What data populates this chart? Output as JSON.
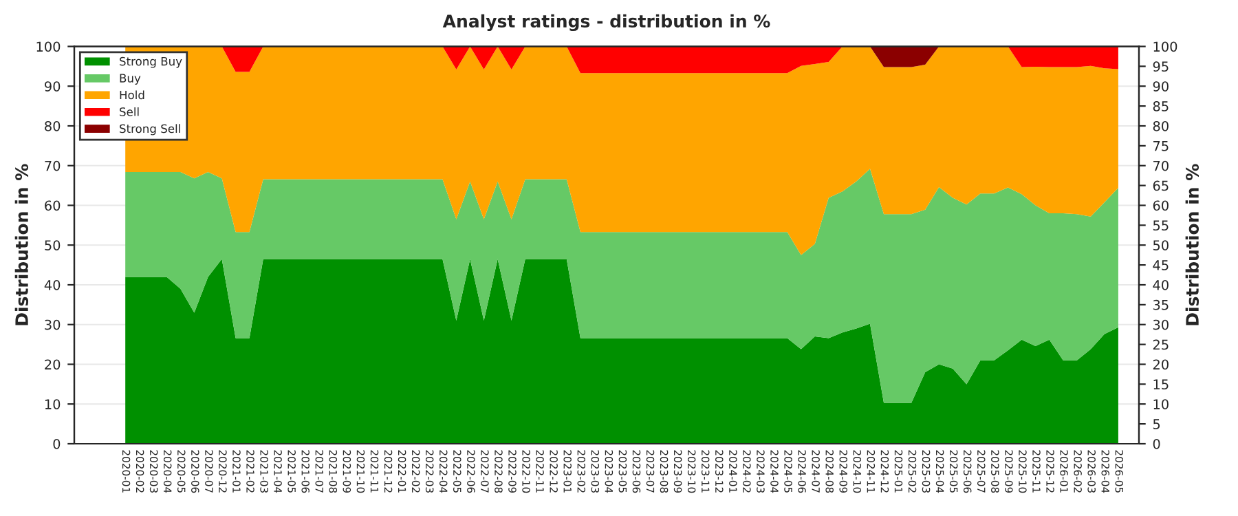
{
  "chart_data": {
    "type": "area",
    "stacked": true,
    "title": "Analyst ratings - distribution in %",
    "ylabel": "Distribution in %",
    "y2label": "Distribution in %",
    "categories": [
      "2020-01",
      "2020-02",
      "2020-03",
      "2020-04",
      "2020-05",
      "2020-06",
      "2020-07",
      "2020-12",
      "2021-01",
      "2021-02",
      "2021-03",
      "2021-04",
      "2021-05",
      "2021-06",
      "2021-07",
      "2021-08",
      "2021-09",
      "2021-10",
      "2021-11",
      "2021-12",
      "2022-01",
      "2022-02",
      "2022-03",
      "2022-04",
      "2022-05",
      "2022-06",
      "2022-07",
      "2022-08",
      "2022-09",
      "2022-10",
      "2022-11",
      "2022-12",
      "2023-01",
      "2023-02",
      "2023-03",
      "2023-04",
      "2023-05",
      "2023-06",
      "2023-07",
      "2023-08",
      "2023-09",
      "2023-10",
      "2023-11",
      "2023-12",
      "2024-01",
      "2024-02",
      "2024-03",
      "2024-04",
      "2024-05",
      "2024-06",
      "2024-07",
      "2024-08",
      "2024-09",
      "2024-10",
      "2024-11",
      "2024-12",
      "2025-01",
      "2025-02",
      "2025-03",
      "2025-04",
      "2025-05",
      "2025-06",
      "2025-07",
      "2025-08",
      "2025-09",
      "2025-10",
      "2025-11",
      "2025-12",
      "2026-01",
      "2026-02",
      "2026-03",
      "2026-04",
      "2026-05"
    ],
    "series": [
      {
        "name": "Strong Buy",
        "color": "#009000",
        "values": [
          42,
          42,
          42,
          42,
          39,
          33,
          42,
          46.5,
          26.6,
          26.6,
          46.5,
          46.5,
          46.5,
          46.5,
          46.5,
          46.5,
          46.5,
          46.5,
          46.5,
          46.5,
          46.5,
          46.5,
          46.5,
          46.5,
          31,
          46.5,
          31,
          46.5,
          31,
          46.5,
          46.5,
          46.5,
          46.5,
          26.6,
          26.6,
          26.6,
          26.6,
          26.6,
          26.6,
          26.6,
          26.6,
          26.6,
          26.6,
          26.6,
          26.6,
          26.6,
          26.6,
          26.6,
          26.6,
          23.8,
          27,
          26.6,
          28,
          29,
          30.2,
          10.3,
          10.3,
          10.3,
          18,
          20,
          18.9,
          15,
          21,
          21,
          23.5,
          26.2,
          24.6,
          26.2,
          21,
          21,
          23.8,
          27.6,
          29.3
        ]
      },
      {
        "name": "Buy",
        "color": "#66c966",
        "values": [
          26.4,
          26.4,
          26.4,
          26.4,
          29.4,
          33.8,
          26.4,
          20.3,
          26.7,
          26.7,
          20.1,
          20.1,
          20.1,
          20.1,
          20.1,
          20.1,
          20.1,
          20.1,
          20.1,
          20.1,
          20.1,
          20.1,
          20.1,
          20.1,
          25.5,
          19.5,
          25.5,
          19.5,
          25.5,
          20.1,
          20.1,
          20.1,
          20.1,
          26.7,
          26.7,
          26.7,
          26.7,
          26.7,
          26.7,
          26.7,
          26.7,
          26.7,
          26.7,
          26.7,
          26.7,
          26.7,
          26.7,
          26.7,
          26.7,
          23.7,
          23.3,
          35.3,
          35.5,
          37,
          39,
          47.5,
          47.5,
          47.5,
          40.9,
          44.6,
          43,
          45.2,
          42,
          42,
          41,
          36.6,
          35.4,
          31.8,
          37,
          36.8,
          33.4,
          33.2,
          35.1
        ]
      },
      {
        "name": "Hold",
        "color": "#ffa500",
        "values": [
          31.6,
          31.6,
          31.6,
          31.6,
          31.6,
          33.2,
          31.6,
          33.2,
          40.3,
          40.3,
          33.4,
          33.4,
          33.4,
          33.4,
          33.4,
          33.4,
          33.4,
          33.4,
          33.4,
          33.4,
          33.4,
          33.4,
          33.4,
          33.4,
          37.7,
          34,
          37.7,
          34,
          37.7,
          33.4,
          33.4,
          33.4,
          33.4,
          40,
          40,
          40,
          40,
          40,
          40,
          40,
          40,
          40,
          40,
          40,
          40,
          40,
          40,
          40,
          40,
          47.6,
          45.3,
          34.2,
          36.5,
          34,
          30.8,
          37,
          37,
          37,
          36.5,
          35.4,
          38.1,
          39.8,
          37,
          37,
          35.5,
          32,
          34.9,
          36.8,
          36.8,
          37,
          37.9,
          33.7,
          29.9
        ]
      },
      {
        "name": "Sell",
        "color": "#ff0000",
        "values": [
          0,
          0,
          0,
          0,
          0,
          0,
          0,
          0,
          6.4,
          6.4,
          0,
          0,
          0,
          0,
          0,
          0,
          0,
          0,
          0,
          0,
          0,
          0,
          0,
          0,
          5.8,
          0,
          5.8,
          0,
          5.8,
          0,
          0,
          0,
          0,
          6.7,
          6.7,
          6.7,
          6.7,
          6.7,
          6.7,
          6.7,
          6.7,
          6.7,
          6.7,
          6.7,
          6.7,
          6.7,
          6.7,
          6.7,
          6.7,
          4.9,
          4.4,
          3.9,
          0,
          0,
          0,
          0,
          0,
          0,
          0,
          0,
          0,
          0,
          0,
          0,
          0,
          5.2,
          5.1,
          5.2,
          5.2,
          5.2,
          4.9,
          5.5,
          5.7
        ]
      },
      {
        "name": "Strong Sell",
        "color": "#8b0000",
        "values": [
          0,
          0,
          0,
          0,
          0,
          0,
          0,
          0,
          0,
          0,
          0,
          0,
          0,
          0,
          0,
          0,
          0,
          0,
          0,
          0,
          0,
          0,
          0,
          0,
          0,
          0,
          0,
          0,
          0,
          0,
          0,
          0,
          0,
          0,
          0,
          0,
          0,
          0,
          0,
          0,
          0,
          0,
          0,
          0,
          0,
          0,
          0,
          0,
          0,
          0,
          0,
          0,
          0,
          0,
          0,
          5.2,
          5.2,
          5.2,
          4.6,
          0,
          0,
          0,
          0,
          0,
          0,
          0,
          0,
          0,
          0,
          0,
          0,
          0,
          0
        ]
      }
    ],
    "ylim": [
      0,
      100
    ],
    "yticks": [
      0,
      10,
      20,
      30,
      40,
      50,
      60,
      70,
      80,
      90,
      100
    ],
    "y2lim": [
      0,
      100
    ],
    "y2ticks": [
      0,
      5,
      10,
      15,
      20,
      25,
      30,
      35,
      40,
      45,
      50,
      55,
      60,
      65,
      70,
      75,
      80,
      85,
      90,
      95,
      100
    ],
    "grid": "y",
    "legend": "top left"
  }
}
